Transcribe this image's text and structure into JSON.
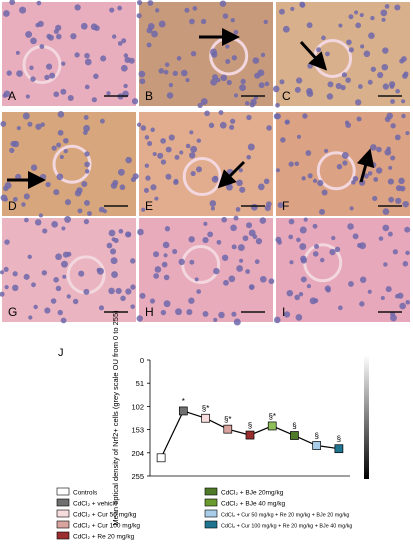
{
  "panels": [
    "A",
    "B",
    "C",
    "D",
    "E",
    "F",
    "G",
    "H",
    "I"
  ],
  "chart_data": {
    "type": "line",
    "panel_label": "J",
    "y_label": "Mean optical density of Nrf2+ cells (grey scale OU from 0 to 255)",
    "categories": [
      null,
      null,
      null,
      null,
      null,
      null,
      null,
      null,
      null
    ],
    "series": [
      {
        "name": null,
        "color": "#000000",
        "values": [
          215,
          112,
          128,
          152,
          165,
          145,
          166,
          188,
          195
        ],
        "point_colors": [
          "#ffffff",
          "#707070",
          "#f6dcdc",
          "#d9a3a0",
          "#9b2e2e",
          "#8fbf5a",
          "#4f7a28",
          "#a9cde8",
          "#1f7590"
        ],
        "point_labels": [
          null,
          "*",
          "§*",
          "§*",
          "§",
          "§*",
          "§",
          "§",
          "§"
        ]
      }
    ],
    "ylim": [
      0,
      255
    ],
    "yticks": [
      0,
      51,
      102,
      153,
      204,
      255
    ],
    "y_inverted": true,
    "legend": [
      {
        "name": "Controls",
        "color": "#ffffff"
      },
      {
        "name": "CdCl₂ + vehicle",
        "color": "#707070"
      },
      {
        "name": "CdCl₂ + Cur 50 mg/kg",
        "color": "#f6dcdc"
      },
      {
        "name": "CdCl₂ + Cur 100 mg/kg",
        "color": "#d9a3a0"
      },
      {
        "name": "CdCl₂ + Re 20 mg/kg",
        "color": "#9b2e2e"
      },
      {
        "name": "CdCl₂ + BJe 20mg/kg",
        "color": "#4f7a28"
      },
      {
        "name": "CdCl₂ + BJe 40 mg/kg",
        "color": "#6b9a2e"
      },
      {
        "name": "CdCl₂ + Cur 50 mg/kg + Re 20 mg/kg + BJe 20 mg/kg",
        "color": "#a9cde8"
      },
      {
        "name": "CdCl₂ + Cur 100 mg/kg + Re 20 mg/kg + BJe 40 mg/kg",
        "color": "#1f7590"
      }
    ]
  }
}
